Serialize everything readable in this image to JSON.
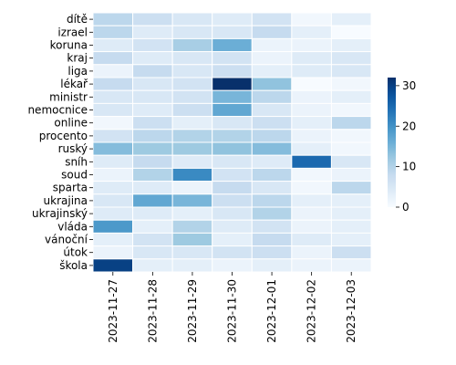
{
  "chart_data": {
    "type": "heatmap",
    "title": "",
    "xlabel": "",
    "ylabel": "",
    "x": [
      "2023-11-27",
      "2023-11-28",
      "2023-11-29",
      "2023-11-30",
      "2023-12-01",
      "2023-12-02",
      "2023-12-03"
    ],
    "y": [
      "dítě",
      "izrael",
      "koruna",
      "kraj",
      "liga",
      "lékař",
      "ministr",
      "nemocnice",
      "online",
      "procento",
      "ruský",
      "sníh",
      "soud",
      "sparta",
      "ukrajina",
      "ukrajinský",
      "vláda",
      "vánoční",
      "útok",
      "škola"
    ],
    "values": [
      [
        9,
        7,
        5,
        4,
        6,
        1,
        3
      ],
      [
        9,
        4,
        5,
        5,
        8,
        3,
        0
      ],
      [
        4,
        6,
        11,
        16,
        2,
        2,
        3
      ],
      [
        8,
        4,
        5,
        6,
        2,
        4,
        5
      ],
      [
        2,
        8,
        5,
        7,
        3,
        4,
        5
      ],
      [
        8,
        5,
        6,
        32,
        13,
        0,
        1
      ],
      [
        5,
        5,
        6,
        15,
        9,
        2,
        3
      ],
      [
        5,
        4,
        7,
        17,
        5,
        2,
        1
      ],
      [
        1,
        7,
        3,
        5,
        7,
        3,
        9
      ],
      [
        6,
        9,
        10,
        10,
        9,
        2,
        1
      ],
      [
        14,
        12,
        12,
        13,
        14,
        3,
        1
      ],
      [
        4,
        8,
        4,
        5,
        4,
        25,
        5
      ],
      [
        2,
        10,
        21,
        6,
        9,
        1,
        2
      ],
      [
        4,
        4,
        2,
        8,
        5,
        1,
        9
      ],
      [
        5,
        17,
        15,
        7,
        9,
        3,
        3
      ],
      [
        4,
        4,
        3,
        5,
        10,
        2,
        3
      ],
      [
        19,
        3,
        10,
        4,
        6,
        2,
        3
      ],
      [
        3,
        6,
        12,
        3,
        8,
        4,
        3
      ],
      [
        2,
        5,
        5,
        6,
        7,
        2,
        7
      ],
      [
        30,
        3,
        3,
        2,
        3,
        2,
        2
      ]
    ],
    "colorbar": {
      "min": 0,
      "max": 32,
      "ticks": [
        0,
        10,
        20,
        30
      ]
    },
    "colormap": "Blues",
    "grid": false,
    "legend": "colorbar-right"
  }
}
